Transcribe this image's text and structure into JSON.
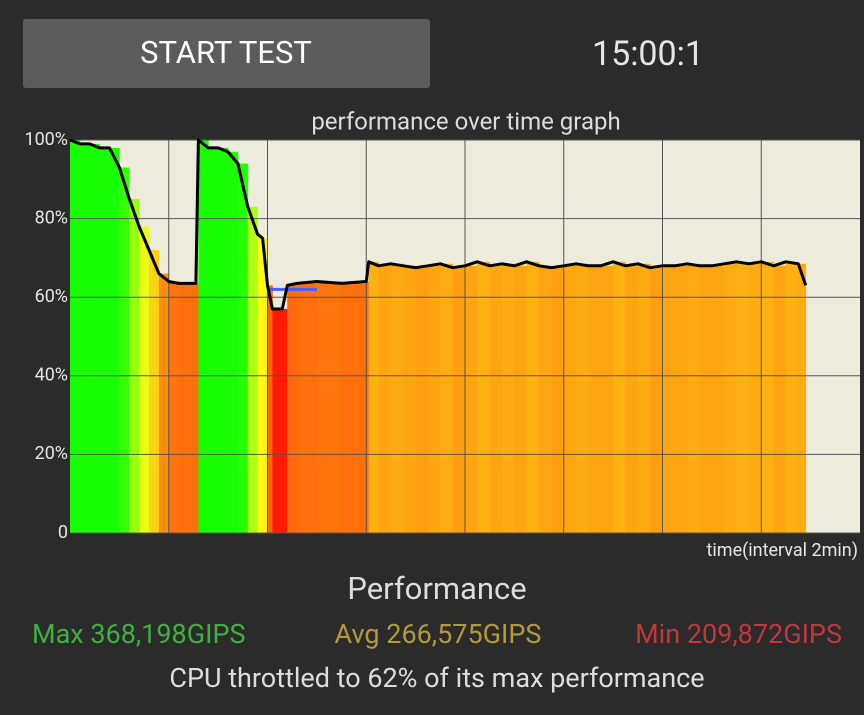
{
  "header": {
    "button": "START TEST",
    "timer": "15:00:1"
  },
  "chart_data": {
    "type": "area",
    "title": "performance over time graph",
    "x_label": "time(interval 2min)",
    "x": [
      0,
      0.2,
      0.4,
      0.6,
      0.8,
      1.0,
      1.2,
      1.4,
      1.6,
      1.8,
      2.0,
      2.2,
      2.4,
      2.55,
      2.6,
      2.8,
      3.0,
      3.2,
      3.4,
      3.6,
      3.8,
      3.9,
      4.0,
      4.1,
      4.3,
      4.4,
      4.6,
      5.0,
      5.5,
      6.0,
      6.05,
      6.25,
      6.5,
      6.75,
      7.0,
      7.25,
      7.5,
      7.75,
      8.0,
      8.25,
      8.5,
      8.75,
      9.0,
      9.25,
      9.5,
      9.75,
      10.0,
      10.25,
      10.5,
      10.75,
      11.0,
      11.25,
      11.5,
      11.75,
      12.0,
      12.25,
      12.5,
      12.75,
      13.0,
      13.25,
      13.5,
      13.75,
      14.0,
      14.25,
      14.5,
      14.75,
      14.9
    ],
    "values": [
      100,
      99,
      99,
      98,
      98,
      93,
      85,
      78,
      72,
      66,
      64,
      63.5,
      63.5,
      63.5,
      100,
      98,
      98,
      97,
      94,
      83,
      76,
      75,
      63,
      57,
      57,
      63,
      63.5,
      64,
      63.5,
      64,
      69,
      68,
      68.5,
      68,
      67.5,
      68,
      68.5,
      67.5,
      68,
      69,
      68,
      68.5,
      68,
      69,
      68,
      67.5,
      68,
      68.5,
      68,
      68,
      69,
      68,
      68.5,
      67.5,
      68,
      68,
      68.5,
      68,
      68,
      68.5,
      69,
      68.5,
      69,
      68,
      69,
      68.5,
      63
    ],
    "xlim": [
      0,
      16
    ],
    "xticks": [
      2,
      4,
      6,
      8,
      10,
      12,
      14
    ],
    "ylim": [
      0,
      100
    ],
    "yticks": [
      0,
      {
        "value": 20,
        "label": "20%"
      },
      {
        "value": 40,
        "label": "40%"
      },
      {
        "value": 60,
        "label": "60%"
      },
      {
        "value": 80,
        "label": "80%"
      },
      {
        "value": 100,
        "label": "100%"
      }
    ],
    "grid": true,
    "line_color": "#000000",
    "background": "#ecebdc",
    "reference_line": {
      "value": 62,
      "x": [
        4,
        5
      ],
      "color": "#4a5cff"
    }
  },
  "summary": {
    "title": "Performance",
    "max": {
      "label": "Max 368,198GIPS",
      "color": "#3fb13f"
    },
    "avg": {
      "label": "Avg 266,575GIPS",
      "color": "#b59a3c"
    },
    "min": {
      "label": "Min 209,872GIPS",
      "color": "#c0393b"
    },
    "note": "CPU throttled to 62% of its max performance"
  }
}
